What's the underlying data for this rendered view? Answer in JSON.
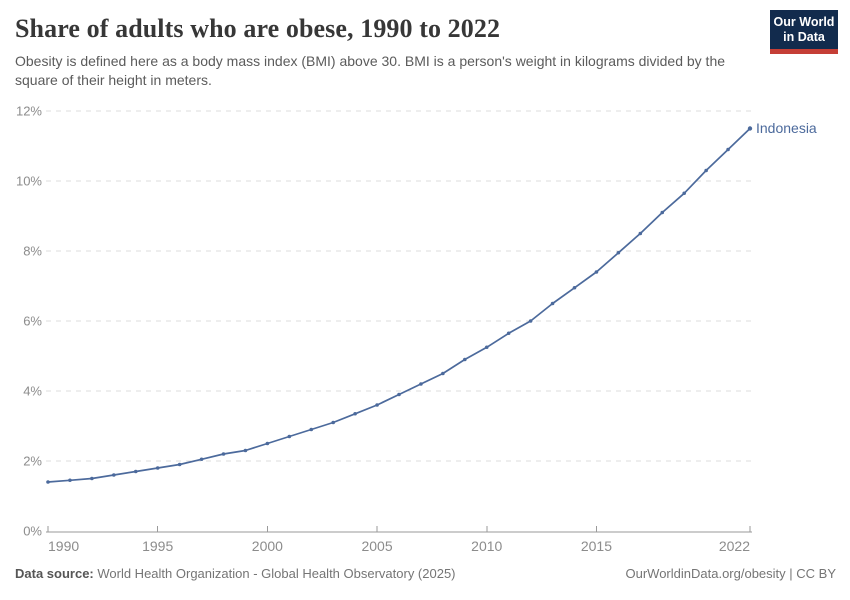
{
  "header": {
    "title": "Share of adults who are obese, 1990 to 2022",
    "subtitle": "Obesity is defined here as a body mass index (BMI) above 30. BMI is a person's weight in kilograms divided by the square of their height in meters.",
    "logo": {
      "line1": "Our World",
      "line2": "in Data"
    }
  },
  "chart_data": {
    "type": "line",
    "title": "Share of adults who are obese, 1990 to 2022",
    "xlabel": "",
    "ylabel": "",
    "xlim": [
      1990,
      2022
    ],
    "ylim": [
      0,
      12
    ],
    "xticks": [
      1990,
      1995,
      2000,
      2005,
      2010,
      2015,
      2022
    ],
    "yticks": [
      0,
      2,
      4,
      6,
      8,
      10,
      12
    ],
    "ytick_suffix": "%",
    "grid": "horizontal-dashed",
    "legend_position": "end-of-line",
    "x": [
      1990,
      1991,
      1992,
      1993,
      1994,
      1995,
      1996,
      1997,
      1998,
      1999,
      2000,
      2001,
      2002,
      2003,
      2004,
      2005,
      2006,
      2007,
      2008,
      2009,
      2010,
      2011,
      2012,
      2013,
      2014,
      2015,
      2016,
      2017,
      2018,
      2019,
      2020,
      2021,
      2022
    ],
    "series": [
      {
        "name": "Indonesia",
        "color": "#4c6a9c",
        "values": [
          1.4,
          1.45,
          1.5,
          1.6,
          1.7,
          1.8,
          1.9,
          2.05,
          2.2,
          2.3,
          2.5,
          2.7,
          2.9,
          3.1,
          3.35,
          3.6,
          3.9,
          4.2,
          4.5,
          4.9,
          5.25,
          5.65,
          6.0,
          6.5,
          6.95,
          7.4,
          7.95,
          8.5,
          9.1,
          9.65,
          10.3,
          10.9,
          11.5
        ]
      }
    ]
  },
  "footer": {
    "datasource_label": "Data source:",
    "datasource_text": " World Health Organization - Global Health Observatory (2025)",
    "rights": "OurWorldinData.org/obesity | CC BY"
  },
  "colors": {
    "navy": "#122b4d",
    "logo_red": "#c53e36",
    "line": "#4c6a9c",
    "grid": "#dddddd",
    "axis": "#9a9a9a",
    "tick_text": "#8c8c8c",
    "title": "#373737",
    "subtitle": "#5b5b5b",
    "footer": "#757575"
  }
}
